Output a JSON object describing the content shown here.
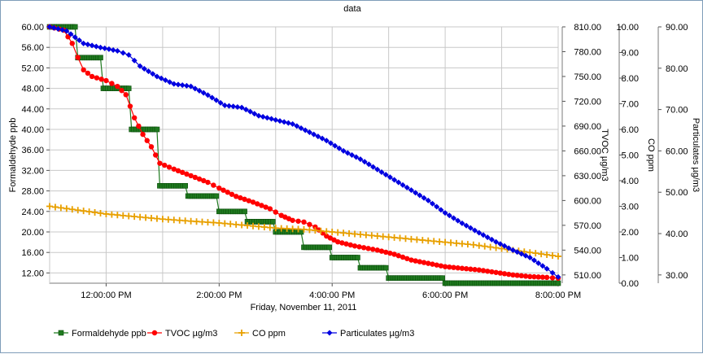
{
  "chart_data": {
    "type": "line",
    "title": "data",
    "xlabel": "Friday, November 11, 2011",
    "x_tick_labels": [
      "12:00:00 PM",
      "2:00:00 PM",
      "4:00:00 PM",
      "6:00:00 PM",
      "8:00:00 PM"
    ],
    "x_range_hours": [
      11.0,
      20.0
    ],
    "grid": true,
    "legend_position": "bottom",
    "axes": [
      {
        "id": "formaldehyde",
        "label": "Formaldehyde ppb",
        "side": "left",
        "range": [
          10,
          60
        ],
        "ticks": [
          "12.00",
          "16.00",
          "20.00",
          "24.00",
          "28.00",
          "32.00",
          "36.00",
          "40.00",
          "44.00",
          "48.00",
          "52.00",
          "56.00",
          "60.00"
        ]
      },
      {
        "id": "tvoc",
        "label": "TVOC µg/m3",
        "side": "right",
        "range": [
          500,
          810
        ],
        "ticks": [
          "510.00",
          "540.00",
          "570.00",
          "600.00",
          "630.00",
          "660.00",
          "690.00",
          "720.00",
          "750.00",
          "780.00",
          "810.00"
        ]
      },
      {
        "id": "co",
        "label": "CO ppm",
        "side": "right",
        "range": [
          0,
          10
        ],
        "ticks": [
          "0.00",
          "1.00",
          "2.00",
          "3.00",
          "4.00",
          "5.00",
          "6.00",
          "7.00",
          "8.00",
          "9.00",
          "10.00"
        ]
      },
      {
        "id": "particulates",
        "label": "Particulates µg/m3",
        "side": "right",
        "range": [
          28,
          90
        ],
        "ticks": [
          "30.00",
          "40.00",
          "50.00",
          "60.00",
          "70.00",
          "80.00",
          "90.00"
        ]
      }
    ],
    "series": [
      {
        "name": "Formaldehyde ppb",
        "axis": "formaldehyde",
        "color": "#1f7a1f",
        "marker": "square",
        "points": [
          [
            11.0,
            60
          ],
          [
            11.45,
            60
          ],
          [
            11.5,
            54
          ],
          [
            11.9,
            54
          ],
          [
            11.95,
            48
          ],
          [
            12.4,
            48
          ],
          [
            12.45,
            40
          ],
          [
            12.9,
            40
          ],
          [
            12.95,
            29
          ],
          [
            13.4,
            29
          ],
          [
            13.45,
            27
          ],
          [
            13.95,
            27
          ],
          [
            14.0,
            24
          ],
          [
            14.45,
            24
          ],
          [
            14.5,
            22
          ],
          [
            14.95,
            22
          ],
          [
            15.0,
            20
          ],
          [
            15.45,
            20
          ],
          [
            15.5,
            17
          ],
          [
            15.95,
            17
          ],
          [
            16.0,
            15
          ],
          [
            16.45,
            15
          ],
          [
            16.5,
            13
          ],
          [
            16.95,
            13
          ],
          [
            17.0,
            11
          ],
          [
            17.95,
            11
          ],
          [
            18.0,
            10
          ],
          [
            20.0,
            10
          ]
        ]
      },
      {
        "name": "TVOC µg/m3",
        "axis": "tvoc",
        "color": "#ff0000",
        "marker": "circle",
        "points": [
          [
            11.0,
            810
          ],
          [
            11.25,
            806
          ],
          [
            11.4,
            790
          ],
          [
            11.5,
            773
          ],
          [
            11.6,
            758
          ],
          [
            11.75,
            750
          ],
          [
            12.0,
            745
          ],
          [
            12.2,
            738
          ],
          [
            12.35,
            728
          ],
          [
            12.5,
            700
          ],
          [
            12.65,
            680
          ],
          [
            12.8,
            665
          ],
          [
            12.95,
            645
          ],
          [
            13.2,
            638
          ],
          [
            13.5,
            630
          ],
          [
            13.8,
            622
          ],
          [
            14.0,
            615
          ],
          [
            14.3,
            605
          ],
          [
            14.6,
            598
          ],
          [
            14.9,
            590
          ],
          [
            15.1,
            582
          ],
          [
            15.3,
            576
          ],
          [
            15.5,
            574
          ],
          [
            15.7,
            568
          ],
          [
            15.9,
            557
          ],
          [
            16.1,
            550
          ],
          [
            16.4,
            545
          ],
          [
            16.8,
            540
          ],
          [
            17.1,
            535
          ],
          [
            17.4,
            528
          ],
          [
            17.7,
            524
          ],
          [
            18.0,
            520
          ],
          [
            18.3,
            518
          ],
          [
            18.6,
            516
          ],
          [
            18.9,
            513
          ],
          [
            19.2,
            510
          ],
          [
            19.5,
            508
          ],
          [
            19.8,
            507
          ],
          [
            20.0,
            506
          ]
        ]
      },
      {
        "name": "CO ppm",
        "axis": "co",
        "color": "#e8a000",
        "marker": "plus",
        "points": [
          [
            11.0,
            3.0
          ],
          [
            11.5,
            2.85
          ],
          [
            12.0,
            2.7
          ],
          [
            12.5,
            2.6
          ],
          [
            13.0,
            2.5
          ],
          [
            13.5,
            2.42
          ],
          [
            14.0,
            2.35
          ],
          [
            14.5,
            2.25
          ],
          [
            15.0,
            2.15
          ],
          [
            15.5,
            2.1
          ],
          [
            16.0,
            2.0
          ],
          [
            16.5,
            1.9
          ],
          [
            17.0,
            1.8
          ],
          [
            17.5,
            1.7
          ],
          [
            18.0,
            1.6
          ],
          [
            18.5,
            1.5
          ],
          [
            19.0,
            1.35
          ],
          [
            19.5,
            1.2
          ],
          [
            20.0,
            1.05
          ]
        ]
      },
      {
        "name": "Particulates µg/m3",
        "axis": "particulates",
        "color": "#0000e0",
        "marker": "diamond",
        "points": [
          [
            11.0,
            90
          ],
          [
            11.3,
            89
          ],
          [
            11.6,
            86
          ],
          [
            11.9,
            85
          ],
          [
            12.2,
            84.2
          ],
          [
            12.4,
            83.2
          ],
          [
            12.6,
            80.5
          ],
          [
            12.9,
            78
          ],
          [
            13.2,
            76.2
          ],
          [
            13.5,
            75.6
          ],
          [
            13.8,
            73.5
          ],
          [
            14.1,
            71
          ],
          [
            14.4,
            70.5
          ],
          [
            14.7,
            68.5
          ],
          [
            15.0,
            67.5
          ],
          [
            15.3,
            66.5
          ],
          [
            15.6,
            64.5
          ],
          [
            15.9,
            62.5
          ],
          [
            16.2,
            60
          ],
          [
            16.5,
            58
          ],
          [
            16.8,
            55.5
          ],
          [
            17.1,
            53
          ],
          [
            17.4,
            50.5
          ],
          [
            17.7,
            48
          ],
          [
            18.0,
            45
          ],
          [
            18.3,
            42.5
          ],
          [
            18.6,
            40.2
          ],
          [
            18.9,
            38
          ],
          [
            19.2,
            36
          ],
          [
            19.5,
            34.2
          ],
          [
            19.8,
            31.5
          ],
          [
            20.0,
            29.5
          ]
        ]
      }
    ],
    "legend": [
      "Formaldehyde ppb",
      "TVOC µg/m3",
      "CO ppm",
      "Particulates µg/m3"
    ]
  }
}
